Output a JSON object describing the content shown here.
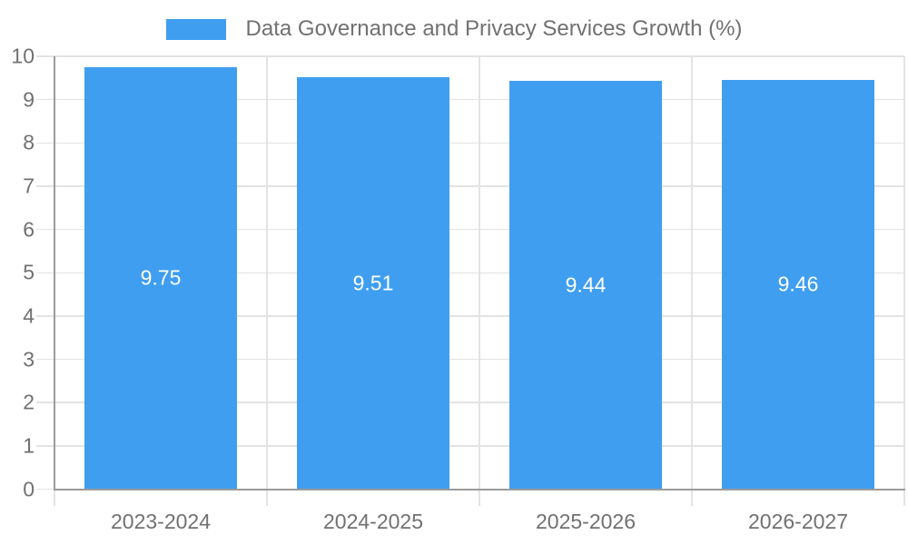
{
  "legend": {
    "label": "Data Governance and Privacy Services Growth (%)"
  },
  "chart_data": {
    "type": "bar",
    "title": "Data Governance and Privacy Services Growth (%)",
    "categories": [
      "2023-2024",
      "2024-2025",
      "2025-2026",
      "2026-2027"
    ],
    "values": [
      9.75,
      9.51,
      9.44,
      9.46
    ],
    "value_labels": [
      "9.75",
      "9.51",
      "9.44",
      "9.46"
    ],
    "xlabel": "",
    "ylabel": "",
    "ylim": [
      0,
      10
    ],
    "y_ticks": [
      0,
      1,
      2,
      3,
      4,
      5,
      6,
      7,
      8,
      9,
      10
    ],
    "grid": true,
    "legend_position": "top",
    "colors": {
      "bar": "#3f9ef0",
      "grid": "#e3e3e3",
      "axis": "#9b9b9b",
      "label": "#717171",
      "bar_label": "#ffffff"
    }
  }
}
